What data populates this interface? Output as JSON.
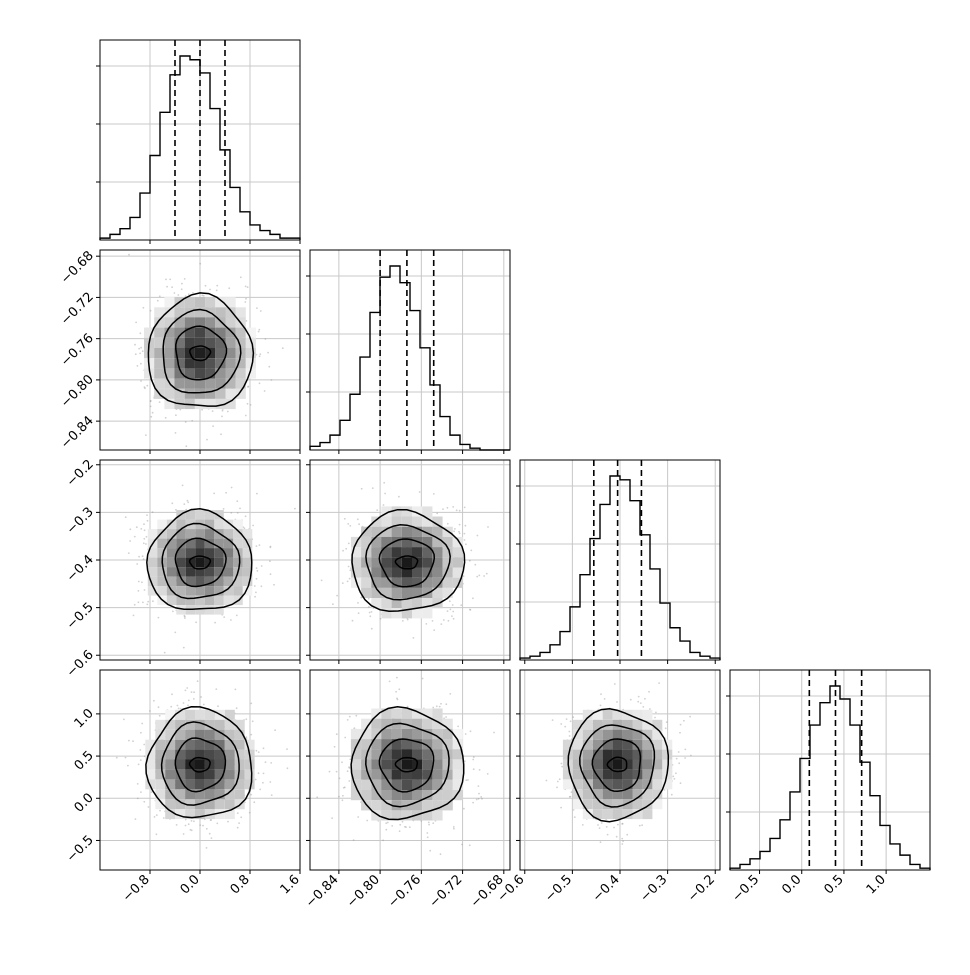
{
  "chart_data": {
    "type": "corner",
    "title": "",
    "parameters": [
      {
        "index": 0,
        "label": "",
        "range": [
          -1.6,
          1.6
        ],
        "ticks": [
          -0.8,
          0.0,
          0.8,
          1.6
        ],
        "tick_labels": [
          "−0.8",
          "0.0",
          "0.8",
          "1.6"
        ],
        "quantiles": [
          -0.4,
          0.0,
          0.4
        ]
      },
      {
        "index": 1,
        "label": "",
        "range": [
          -0.868,
          -0.674
        ],
        "ticks": [
          -0.84,
          -0.8,
          -0.76,
          -0.72,
          -0.68
        ],
        "tick_labels": [
          "−0.84",
          "−0.80",
          "−0.76",
          "−0.72",
          "−0.68"
        ],
        "quantiles": [
          -0.8,
          -0.774,
          -0.748
        ]
      },
      {
        "index": 2,
        "label": "",
        "range": [
          -0.61,
          -0.19
        ],
        "ticks": [
          -0.6,
          -0.5,
          -0.4,
          -0.3,
          -0.2
        ],
        "tick_labels": [
          "−0.6",
          "−0.5",
          "−0.4",
          "−0.3",
          "−0.2"
        ],
        "quantiles": [
          -0.455,
          -0.405,
          -0.355
        ]
      },
      {
        "index": 3,
        "label": "",
        "range": [
          -0.85,
          1.52
        ],
        "ticks": [
          -0.5,
          0.0,
          0.5,
          1.0
        ],
        "tick_labels": [
          "−0.5",
          "0.0",
          "0.5",
          "1.0"
        ],
        "quantiles": [
          0.09,
          0.4,
          0.71
        ]
      }
    ],
    "histograms": [
      {
        "param": 0,
        "values": [
          1,
          3,
          6,
          12,
          25,
          45,
          68,
          88,
          98,
          96,
          89,
          70,
          48,
          28,
          15,
          8,
          5,
          3,
          1,
          1
        ]
      },
      {
        "param": 1,
        "values": [
          2,
          4,
          8,
          16,
          30,
          50,
          74,
          93,
          99,
          90,
          75,
          55,
          35,
          18,
          8,
          3,
          1,
          0,
          0,
          0
        ]
      },
      {
        "param": 2,
        "values": [
          1,
          2,
          4,
          8,
          15,
          28,
          45,
          64,
          82,
          97,
          95,
          84,
          66,
          48,
          30,
          17,
          10,
          4,
          2,
          1
        ]
      },
      {
        "param": 3,
        "values": [
          1,
          3,
          6,
          10,
          17,
          27,
          42,
          60,
          78,
          90,
          99,
          92,
          78,
          58,
          40,
          24,
          14,
          8,
          3,
          1
        ]
      }
    ],
    "pairs": [
      {
        "x": 1,
        "y": 0
      },
      {
        "x": 2,
        "y": 0
      },
      {
        "x": 2,
        "y": 1
      },
      {
        "x": 3,
        "y": 0
      },
      {
        "x": 3,
        "y": 1
      },
      {
        "x": 3,
        "y": 2
      }
    ],
    "axis_tick_labels": {
      "bottom_row": [
        "−0.8",
        "0.0",
        "0.8",
        "1.6",
        "−0.84",
        "−0.80",
        "−0.76",
        "−0.72",
        "−0.68",
        "−0.6",
        "−0.5",
        "−0.4",
        "−0.3",
        "−0.2",
        "−0.5",
        "0.0",
        "0.5",
        "1.0"
      ],
      "left_column": [
        "−0.68",
        "−0.72",
        "−0.76",
        "−0.80",
        "−0.84",
        "−0.2",
        "−0.3",
        "−0.4",
        "−0.5",
        "−0.6",
        "1.0",
        "0.5",
        "0.0",
        "−0.5"
      ]
    },
    "grid": true,
    "legend": "none",
    "colors": {
      "line": "#000000",
      "scatter": "#9a9a9a",
      "grid": "#c8c8c8"
    }
  }
}
